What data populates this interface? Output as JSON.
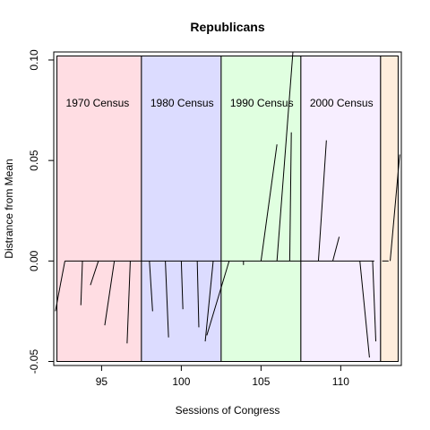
{
  "chart_data": {
    "type": "line",
    "title": "Republicans",
    "xlabel": "Sessions of Congress",
    "ylabel": "Distrance from Mean",
    "xlim": [
      92.0,
      113.8
    ],
    "ylim": [
      -0.052,
      0.104
    ],
    "x_ticks": [
      95,
      100,
      105,
      110
    ],
    "y_ticks": [
      -0.05,
      0.0,
      0.05,
      0.1
    ],
    "x_tick_labels": [
      "95",
      "100",
      "105",
      "110"
    ],
    "y_tick_labels": [
      "-0.05",
      "0.00",
      "0.05",
      "0.10"
    ],
    "census_periods": [
      {
        "label": "1970 Census",
        "x_start": 92.2,
        "x_end": 97.5,
        "color": "#ffdde3"
      },
      {
        "label": "1980 Census",
        "x_start": 97.5,
        "x_end": 102.5,
        "color": "#dcdcff"
      },
      {
        "label": "1990 Census",
        "x_start": 102.5,
        "x_end": 107.5,
        "color": "#e0ffe0"
      },
      {
        "label": "2000 Census",
        "x_start": 107.5,
        "x_end": 112.5,
        "color": "#f7eeff"
      },
      {
        "label": "",
        "x_start": 112.5,
        "x_end": 113.6,
        "color": "#ffeedd"
      }
    ],
    "baseline_segments": [
      [
        92.7,
        0.0
      ],
      [
        112.1,
        0.0
      ]
    ],
    "baseline_segment2": [
      [
        112.6,
        0.0
      ],
      [
        113.0,
        0.0
      ]
    ],
    "segments": [
      {
        "from": [
          92.7,
          0.0
        ],
        "to": [
          92.1,
          -0.025
        ]
      },
      {
        "from": [
          93.8,
          0.0
        ],
        "to": [
          93.7,
          -0.022
        ]
      },
      {
        "from": [
          94.8,
          0.0
        ],
        "to": [
          94.3,
          -0.012
        ]
      },
      {
        "from": [
          95.8,
          0.0
        ],
        "to": [
          95.2,
          -0.032
        ]
      },
      {
        "from": [
          96.8,
          0.0
        ],
        "to": [
          96.6,
          -0.041
        ]
      },
      {
        "from": [
          98.0,
          0.0
        ],
        "to": [
          98.2,
          -0.025
        ]
      },
      {
        "from": [
          99.0,
          0.0
        ],
        "to": [
          99.2,
          -0.038
        ]
      },
      {
        "from": [
          100.0,
          0.0
        ],
        "to": [
          100.1,
          -0.024
        ]
      },
      {
        "from": [
          101.0,
          0.0
        ],
        "to": [
          101.1,
          -0.033
        ]
      },
      {
        "from": [
          102.0,
          0.0
        ],
        "to": [
          101.5,
          -0.04
        ]
      },
      {
        "from": [
          103.0,
          0.0
        ],
        "to": [
          101.6,
          -0.037
        ]
      },
      {
        "from": [
          103.9,
          0.0
        ],
        "to": [
          103.9,
          -0.002
        ]
      },
      {
        "from": [
          105.0,
          0.0
        ],
        "to": [
          106.0,
          0.058
        ]
      },
      {
        "from": [
          106.0,
          0.0
        ],
        "to": [
          107.0,
          0.104
        ]
      },
      {
        "from": [
          106.8,
          0.0
        ],
        "to": [
          106.9,
          0.064
        ]
      },
      {
        "from": [
          108.6,
          0.0
        ],
        "to": [
          109.1,
          0.06
        ]
      },
      {
        "from": [
          109.5,
          0.0
        ],
        "to": [
          109.9,
          0.012
        ]
      },
      {
        "from": [
          111.2,
          0.0
        ],
        "to": [
          111.8,
          -0.048
        ]
      },
      {
        "from": [
          112.0,
          0.0
        ],
        "to": [
          112.2,
          -0.04
        ]
      },
      {
        "from": [
          113.1,
          0.0
        ],
        "to": [
          113.7,
          0.053
        ]
      }
    ]
  }
}
